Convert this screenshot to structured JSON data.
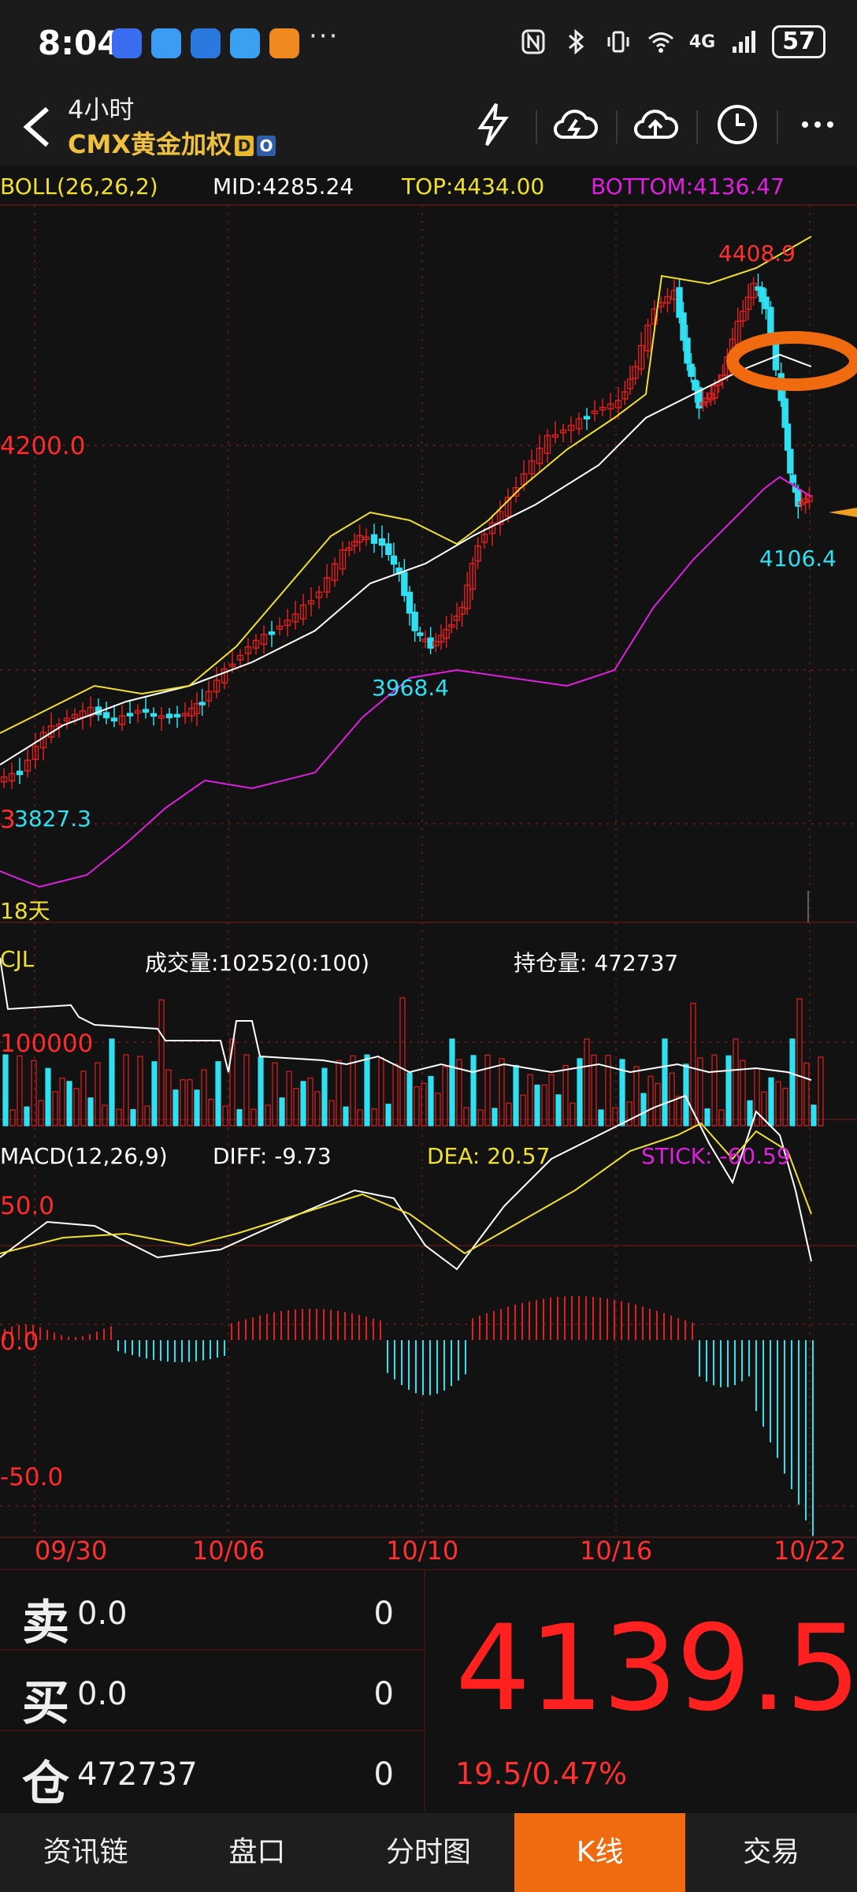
{
  "status": {
    "time": "8:04",
    "network": "4G",
    "battery": "57",
    "dots": "···"
  },
  "header": {
    "period": "4小时",
    "name": "CMX黄金加权",
    "tag_d": "D",
    "tag_o": "O"
  },
  "boll": {
    "label": "BOLL(26,26,2)",
    "mid": "MID:4285.24",
    "top": "TOP:4434.00",
    "bottom": "BOTTOM:4136.47"
  },
  "price_axis": {
    "level": "4200.0"
  },
  "annotations": {
    "high": "4408.9",
    "low_right": "4106.4",
    "low_mid": "3968.4",
    "low_left": "3827.3",
    "left_cut": "3",
    "days": "18天"
  },
  "volume": {
    "label": "CJL",
    "turnover": "成交量:10252(0:100)",
    "open_interest": "持仓量: 472737",
    "axis": "100000"
  },
  "macd": {
    "label": "MACD(12,26,9)",
    "diff": "DIFF: -9.73",
    "dea": "DEA: 20.57",
    "stick": "STICK: -60.59",
    "axis_top": "50.0",
    "axis_mid": "0.0",
    "axis_bottom": "-50.0"
  },
  "dates": [
    "09/30",
    "10/06",
    "10/10",
    "10/16",
    "10/22"
  ],
  "quote": {
    "sell_label": "卖",
    "sell_price": "0.0",
    "sell_qty": "0",
    "buy_label": "买",
    "buy_price": "0.0",
    "buy_qty": "0",
    "pos_label": "仓",
    "pos_value": "472737",
    "pos_qty": "0",
    "price": "4139.5",
    "change": "19.5/0.47%"
  },
  "tabs": [
    "资讯链",
    "盘口",
    "分时图",
    "K线",
    "交易"
  ],
  "colors": {
    "up": "#e02020",
    "down": "#30e0f0",
    "mid": "#ffffff",
    "top": "#f0e030",
    "bottom": "#e020e0",
    "accent": "#f06a10"
  },
  "chart_data": {
    "type": "candlestick",
    "timeframe": "4小时",
    "x": [
      "09/30",
      "10/06",
      "10/10",
      "10/16",
      "10/22"
    ],
    "price_labels": {
      "high": 4408.9,
      "low": 4106.4,
      "low_mid": 3968.4,
      "low_left": 3827.3,
      "level": 4200.0
    },
    "boll": {
      "mid": 4285.24,
      "top": 4434.0,
      "bottom": 4136.47
    },
    "volume_axis": 100000,
    "macd": {
      "diff": -9.73,
      "dea": 20.57,
      "stick": -60.59,
      "axis": [
        50.0,
        0.0,
        -50.0
      ]
    },
    "last_price": 4139.5
  }
}
